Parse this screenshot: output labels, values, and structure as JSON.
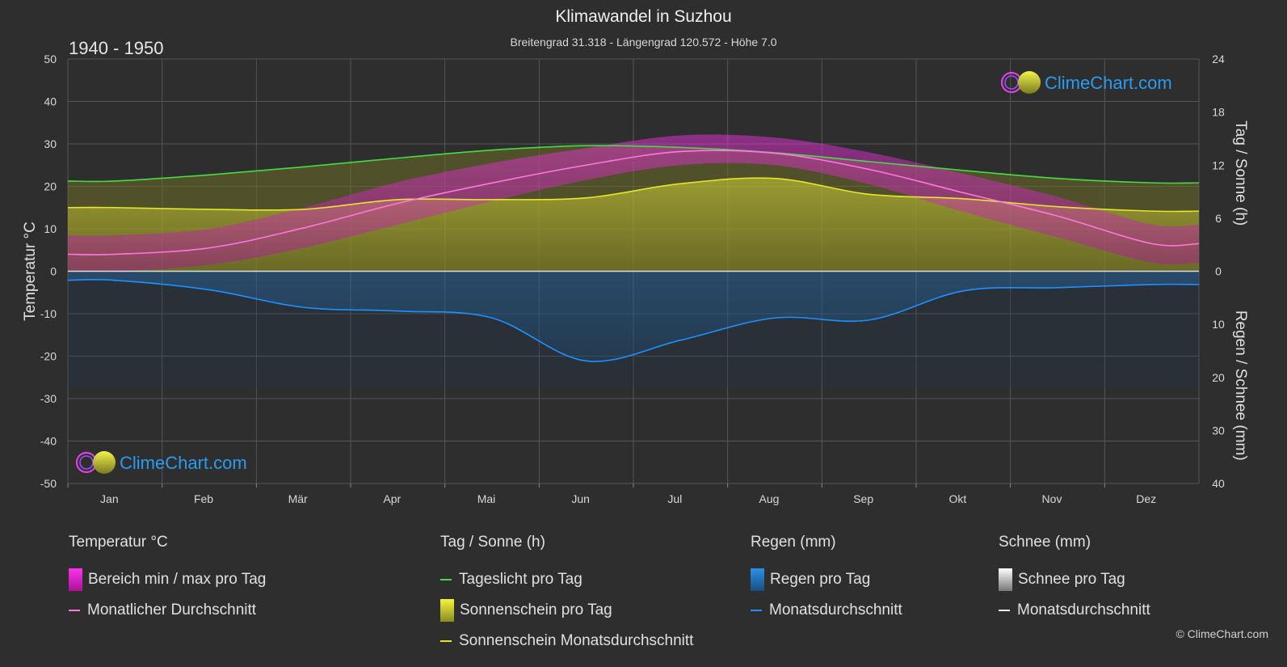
{
  "title": "Klimawandel in Suzhou",
  "subtitle": "Breitengrad 31.318 - Längengrad 120.572 - Höhe 7.0",
  "period": "1940 - 1950",
  "watermark": "ClimeChart.com",
  "copyright": "© ClimeChart.com",
  "colors": {
    "background": "#2e2e2e",
    "daylight": "#44dd44",
    "sunshine_avg": "#e6e62a",
    "sunshine_fill": "#a8a830",
    "temp_avg": "#ff77dd",
    "temp_range": "#dd22cc",
    "rain": "#1e90ff",
    "snow": "#ffffff",
    "brand_blue": "#2a9cf0"
  },
  "chart_data": {
    "type": "line",
    "months": [
      "Jan",
      "Feb",
      "Mär",
      "Apr",
      "Mai",
      "Jun",
      "Jul",
      "Aug",
      "Sep",
      "Okt",
      "Nov",
      "Dez"
    ],
    "y_left": {
      "label": "Temperatur °C",
      "min": -50,
      "max": 50,
      "ticks": [
        50,
        40,
        30,
        20,
        10,
        0,
        -10,
        -20,
        -30,
        -40,
        -50
      ]
    },
    "y_right_top": {
      "label": "Tag / Sonne (h)",
      "min": 0,
      "max": 24,
      "ticks": [
        24,
        18,
        12,
        6,
        0
      ]
    },
    "y_right_bottom": {
      "label": "Regen / Schnee (mm)",
      "min": 0,
      "max": 40,
      "ticks": [
        0,
        10,
        20,
        30,
        40
      ]
    },
    "series": [
      {
        "name": "Tageslicht pro Tag",
        "unit": "h",
        "values": [
          10.2,
          10.9,
          11.8,
          12.8,
          13.7,
          14.2,
          14.0,
          13.4,
          12.4,
          11.4,
          10.5,
          10.0
        ]
      },
      {
        "name": "Sonnenschein Monatsdurchschnitt",
        "unit": "h",
        "values": [
          7.2,
          7.0,
          7.0,
          8.1,
          8.1,
          8.3,
          9.9,
          10.5,
          8.7,
          8.2,
          7.3,
          6.8
        ]
      },
      {
        "name": "Monatlicher Durchschnitt",
        "unit": "°C",
        "values": [
          4.0,
          5.5,
          10.2,
          16.0,
          20.8,
          25.0,
          28.2,
          27.8,
          24.0,
          18.5,
          13.0,
          6.5
        ]
      },
      {
        "name": "Regen Monatsdurchschnitt",
        "unit": "mm",
        "values": [
          1.7,
          3.5,
          6.8,
          7.5,
          8.8,
          16.9,
          13.0,
          8.8,
          9.2,
          3.7,
          3.1,
          2.5
        ]
      },
      {
        "name": "Temperatur min pro Tag (Monat)",
        "unit": "°C",
        "values": [
          0.0,
          1.5,
          5.5,
          11.0,
          16.5,
          21.5,
          25.0,
          25.0,
          20.5,
          14.0,
          8.0,
          2.0
        ]
      },
      {
        "name": "Temperatur max pro Tag (Monat)",
        "unit": "°C",
        "values": [
          8.5,
          10.0,
          15.0,
          21.0,
          25.5,
          29.0,
          32.0,
          31.5,
          28.0,
          23.0,
          17.5,
          11.0
        ]
      }
    ]
  },
  "legend": {
    "temperature": {
      "head": "Temperatur °C",
      "items": [
        "Bereich min / max pro Tag",
        "Monatlicher Durchschnitt"
      ]
    },
    "sun": {
      "head": "Tag / Sonne (h)",
      "items": [
        "Tageslicht pro Tag",
        "Sonnenschein pro Tag",
        "Sonnenschein Monatsdurchschnitt"
      ]
    },
    "rain": {
      "head": "Regen (mm)",
      "items": [
        "Regen pro Tag",
        "Monatsdurchschnitt"
      ]
    },
    "snow": {
      "head": "Schnee (mm)",
      "items": [
        "Schnee pro Tag",
        "Monatsdurchschnitt"
      ]
    }
  }
}
